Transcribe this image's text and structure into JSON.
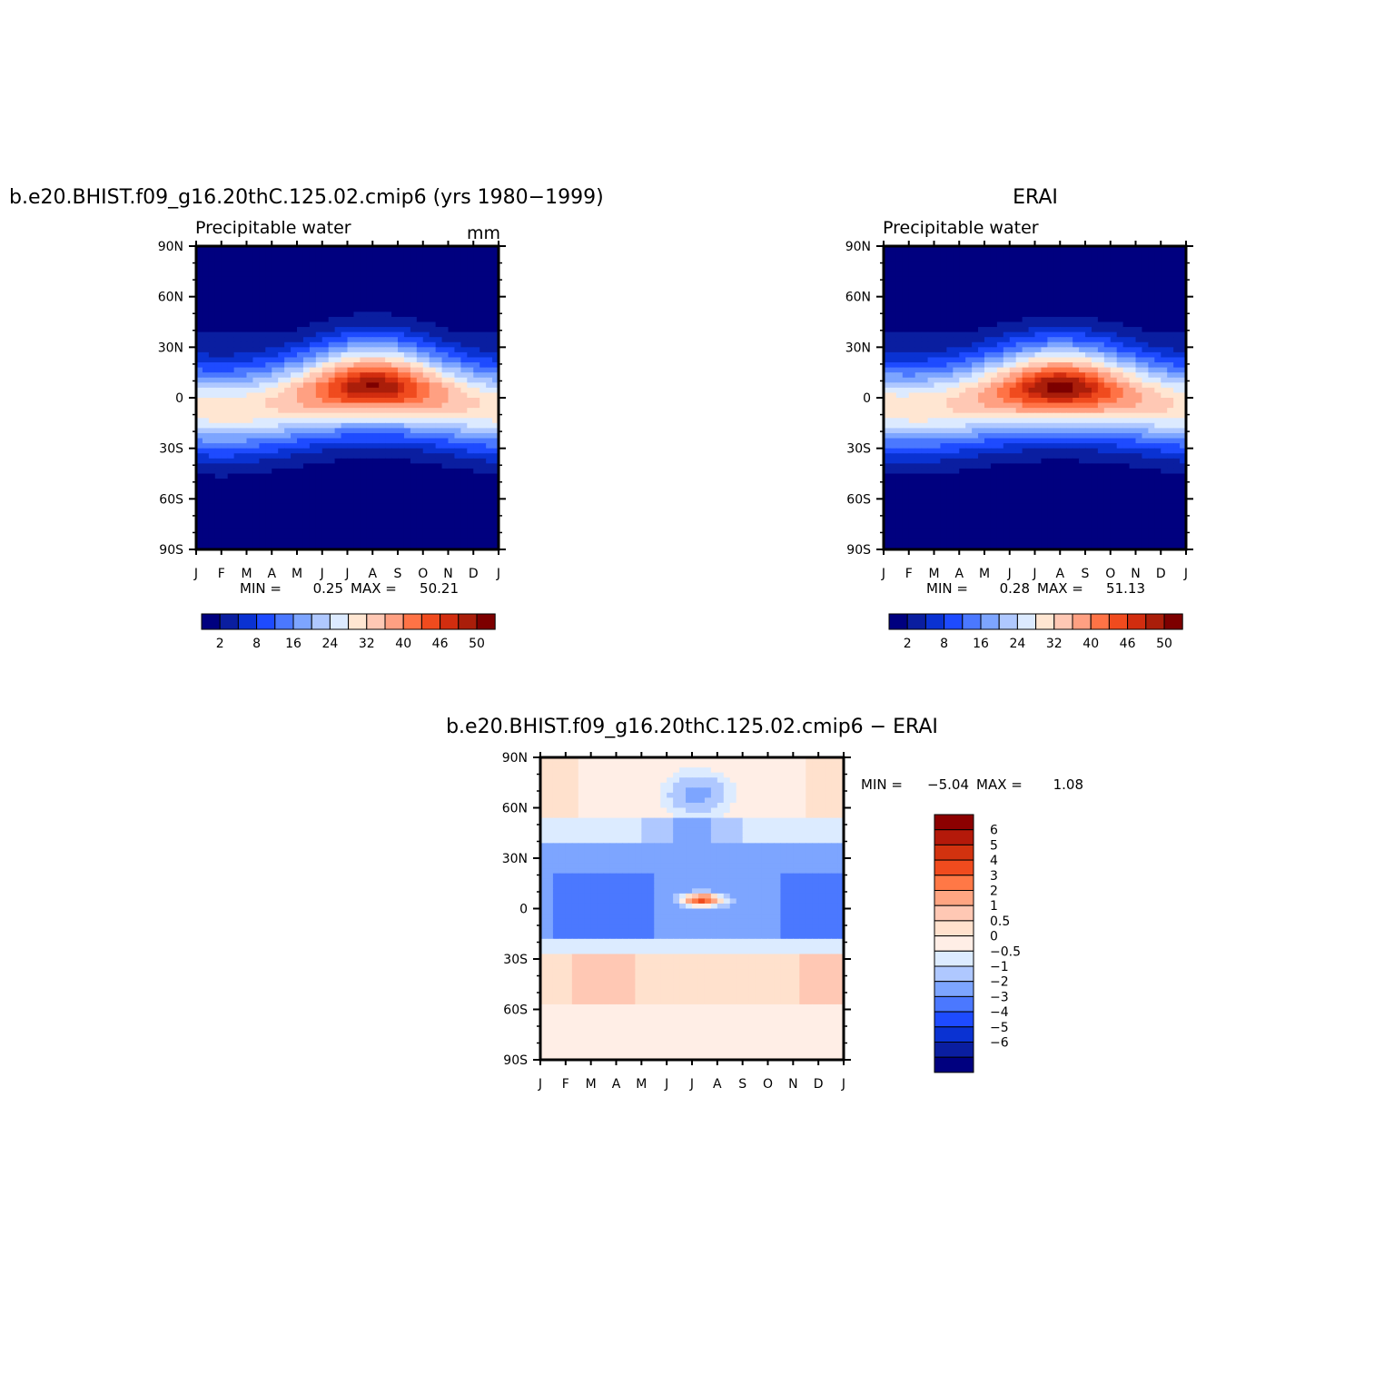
{
  "chart_data": [
    {
      "type": "heatmap",
      "title": "b.e20.BHIST.f09_g16.20thC.125.02.cmip6 (yrs 1980−1999)",
      "subtitle": "Precipitable water",
      "units": "mm",
      "x_ticks": [
        "J",
        "F",
        "M",
        "A",
        "M",
        "J",
        "J",
        "A",
        "S",
        "O",
        "N",
        "D",
        "J"
      ],
      "y_ticks": [
        "90N",
        "60N",
        "30N",
        "0",
        "30S",
        "60S",
        "90S"
      ],
      "ylim": [
        -90,
        90
      ],
      "min_label": "MIN =",
      "min_value": "0.25",
      "max_label": "MAX =",
      "max_value": "50.21",
      "levels": [
        2,
        5,
        8,
        12,
        16,
        20,
        24,
        28,
        32,
        36,
        40,
        43,
        46,
        48,
        50
      ],
      "level_labels": [
        "2",
        "8",
        "16",
        "24",
        "32",
        "40",
        "46",
        "50"
      ],
      "itcz_peak_month": 7.0,
      "itcz_amplitude_deg": 7,
      "peak_value": 50.2,
      "pole_north_value": 3,
      "pole_south_value": 0.5
    },
    {
      "type": "heatmap",
      "title": "ERAI",
      "subtitle": "Precipitable water",
      "x_ticks": [
        "J",
        "F",
        "M",
        "A",
        "M",
        "J",
        "J",
        "A",
        "S",
        "O",
        "N",
        "D",
        "J"
      ],
      "y_ticks": [
        "90N",
        "60N",
        "30N",
        "0",
        "30S",
        "60S",
        "90S"
      ],
      "ylim": [
        -90,
        90
      ],
      "min_label": "MIN =",
      "min_value": "0.28",
      "max_label": "MAX =",
      "max_value": "51.13",
      "levels": [
        2,
        5,
        8,
        12,
        16,
        20,
        24,
        28,
        32,
        36,
        40,
        43,
        46,
        48,
        50
      ],
      "level_labels": [
        "2",
        "8",
        "16",
        "24",
        "32",
        "40",
        "46",
        "50"
      ],
      "itcz_peak_month": 7.0,
      "itcz_amplitude_deg": 6,
      "peak_value": 51.1,
      "pole_north_value": 3,
      "pole_south_value": 0.5
    },
    {
      "type": "heatmap",
      "title": "b.e20.BHIST.f09_g16.20thC.125.02.cmip6 − ERAI",
      "x_ticks": [
        "J",
        "F",
        "M",
        "A",
        "M",
        "J",
        "J",
        "A",
        "S",
        "O",
        "N",
        "D",
        "J"
      ],
      "y_ticks": [
        "90N",
        "60N",
        "30N",
        "0",
        "30S",
        "60S",
        "90S"
      ],
      "ylim": [
        -90,
        90
      ],
      "min_label": "MIN =",
      "min_value": "−5.04",
      "max_label": "MAX =",
      "max_value": "1.08",
      "levels": [
        -6,
        -5,
        -4,
        -3,
        -2,
        -1,
        -0.5,
        0,
        0.5,
        1,
        2,
        3,
        4,
        5,
        6
      ],
      "level_labels": [
        "6",
        "5",
        "4",
        "3",
        "2",
        "1",
        "0.5",
        "0",
        "−0.5",
        "−1",
        "−2",
        "−3",
        "−4",
        "−5",
        "−6"
      ]
    }
  ],
  "palette": [
    "#00007f",
    "#0a1ea0",
    "#0a32d2",
    "#1e4bff",
    "#4b78ff",
    "#7da5ff",
    "#afc8ff",
    "#dceaff",
    "#ffe6d2",
    "#ffc8b4",
    "#ffa082",
    "#ff7346",
    "#f04b1e",
    "#d22d0f",
    "#aa1e0a",
    "#7d0000"
  ],
  "diff_palette_top_to_bottom": [
    "#8c0000",
    "#b4190a",
    "#d2320f",
    "#f04b1e",
    "#ff7846",
    "#ffa582",
    "#ffc8b4",
    "#ffe1cd",
    "#ffeee6",
    "#dcebff",
    "#afc8ff",
    "#7da5ff",
    "#4b78ff",
    "#1e4bff",
    "#0a32d2",
    "#0a1ea0",
    "#00007f"
  ]
}
